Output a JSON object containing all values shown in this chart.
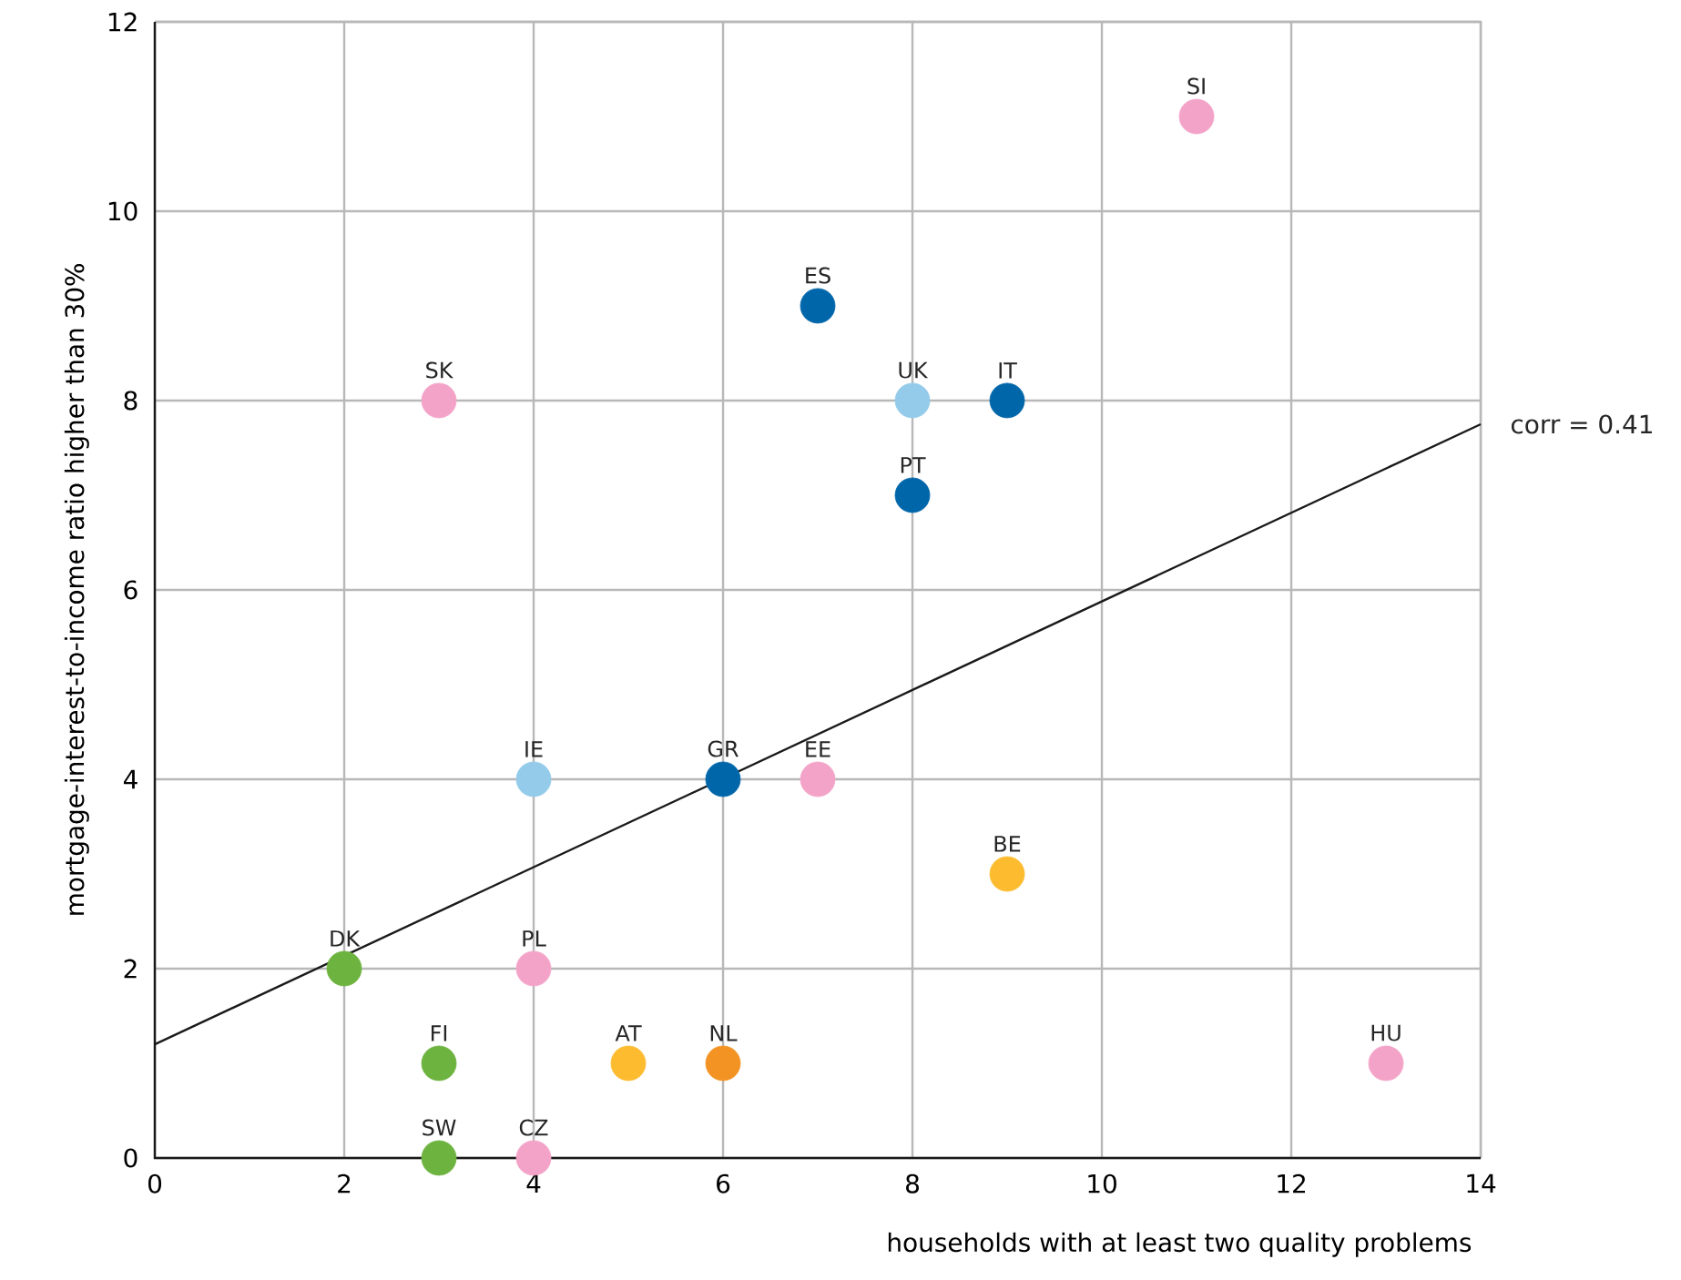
{
  "chart_data": {
    "type": "scatter",
    "xlabel": "households with at least two quality problems",
    "ylabel": "mortgage-interest-to-income ratio higher than  30%",
    "xlim": [
      0,
      14
    ],
    "ylim": [
      0,
      12
    ],
    "xticks": [
      0,
      2,
      4,
      6,
      8,
      10,
      12,
      14
    ],
    "yticks": [
      0,
      2,
      4,
      6,
      8,
      10,
      12
    ],
    "grid": true,
    "series": [
      {
        "marker": "circle",
        "x": [
          11,
          3,
          7,
          8,
          9,
          8,
          4,
          6,
          7,
          9,
          2,
          4,
          3,
          5,
          6,
          13,
          3,
          4
        ],
        "values": [
          11,
          8,
          9,
          8,
          8,
          7,
          4,
          4,
          4,
          3,
          2,
          2,
          1,
          1,
          1,
          1,
          0,
          0
        ],
        "colors": [
          "#f4a3c8",
          "#f4a3c8",
          "#0066aa",
          "#94cbea",
          "#0066aa",
          "#0066aa",
          "#94cbea",
          "#0066aa",
          "#f4a3c8",
          "#fdbb30",
          "#6db33f",
          "#f4a3c8",
          "#6db33f",
          "#fdbb30",
          "#f39324",
          "#f4a3c8",
          "#6db33f",
          "#f4a3c8"
        ]
      },
      {
        "type": "line",
        "x": [
          0,
          14
        ],
        "values": [
          1.2,
          7.75
        ],
        "color": "#1a1a1a",
        "line_style": "solid",
        "marker": "none"
      }
    ],
    "annotations": [
      {
        "text": "SI",
        "x": 11,
        "y": 11
      },
      {
        "text": "SK",
        "x": 3,
        "y": 8
      },
      {
        "text": "ES",
        "x": 7,
        "y": 9
      },
      {
        "text": "UK",
        "x": 8,
        "y": 8
      },
      {
        "text": "IT",
        "x": 9,
        "y": 8
      },
      {
        "text": "PT",
        "x": 8,
        "y": 7
      },
      {
        "text": "IE",
        "x": 4,
        "y": 4
      },
      {
        "text": "GR",
        "x": 6,
        "y": 4
      },
      {
        "text": "EE",
        "x": 7,
        "y": 4
      },
      {
        "text": "BE",
        "x": 9,
        "y": 3
      },
      {
        "text": "DK",
        "x": 2,
        "y": 2
      },
      {
        "text": "PL",
        "x": 4,
        "y": 2
      },
      {
        "text": "FI",
        "x": 3,
        "y": 1
      },
      {
        "text": "AT",
        "x": 5,
        "y": 1
      },
      {
        "text": "NL",
        "x": 6,
        "y": 1
      },
      {
        "text": "HU",
        "x": 13,
        "y": 1
      },
      {
        "text": "SW",
        "x": 3,
        "y": 0
      },
      {
        "text": "CZ",
        "x": 4,
        "y": 0
      },
      {
        "text": "corr = 0.41",
        "x": 14,
        "y": 7.75
      }
    ]
  }
}
